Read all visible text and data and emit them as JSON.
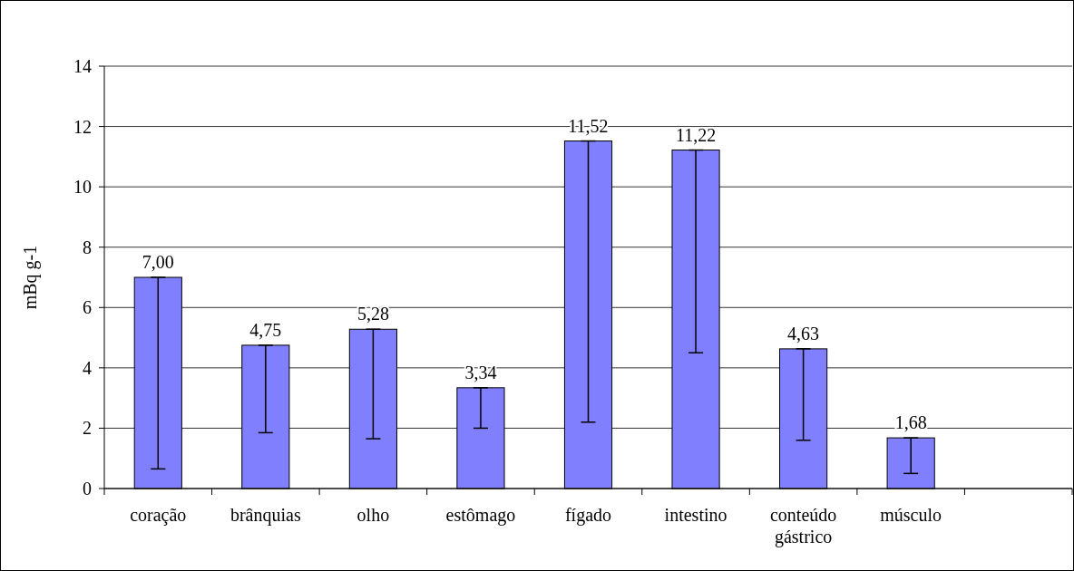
{
  "chart_data": {
    "type": "bar",
    "ylabel": "mBq g-1",
    "categories": [
      "coração",
      "brânquias",
      "olho",
      "estômago",
      "fígado",
      "intestino",
      "conteúdo gástrico",
      "músculo",
      null
    ],
    "values": [
      7.0,
      4.75,
      5.28,
      3.34,
      11.52,
      11.22,
      4.63,
      1.68,
      null
    ],
    "value_labels": [
      "7,00",
      "4,75",
      "5,28",
      "3,34",
      "11,52",
      "11,22",
      "4,63",
      "1,68",
      null
    ],
    "errors": [
      [
        0.65,
        7.0
      ],
      [
        1.85,
        4.75
      ],
      [
        1.65,
        5.28
      ],
      [
        2.0,
        3.34
      ],
      [
        2.2,
        11.52
      ],
      [
        4.5,
        11.22
      ],
      [
        1.6,
        4.63
      ],
      [
        0.5,
        1.68
      ],
      null
    ],
    "color": "#8080ff",
    "ylim": [
      0,
      14
    ],
    "yticks": [
      0,
      2,
      4,
      6,
      8,
      10,
      12,
      14
    ],
    "grid": "y"
  }
}
